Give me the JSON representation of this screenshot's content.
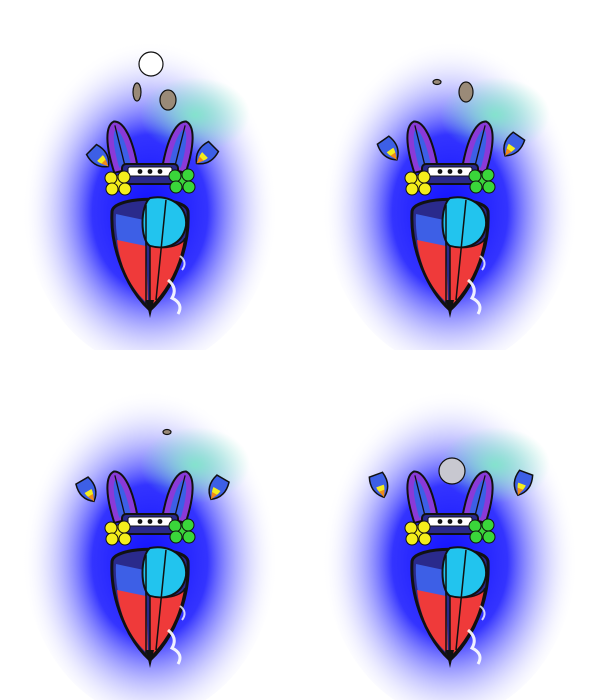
{
  "sprite_sheet": {
    "frame_count": 4,
    "frames": [
      {
        "index": 1,
        "debris": [
          "white-disc",
          "grey-oval",
          "grey-oval"
        ],
        "wings_spread": true
      },
      {
        "index": 2,
        "debris": [
          "grey-oval",
          "grey-oval"
        ],
        "wings_spread": true
      },
      {
        "index": 3,
        "debris": [
          "grey-oval"
        ],
        "wings_spread": true
      },
      {
        "index": 4,
        "debris": [
          "silver-disc"
        ],
        "wings_spread": true
      }
    ]
  },
  "palette": {
    "glow_blue": "#1010ff",
    "glow_mint": "#7fe8c8",
    "body_navy": "#2a2a8c",
    "cyan": "#22c4ee",
    "red": "#ef3a3a",
    "purple": "#8a3ad8",
    "blue": "#3d5fe6",
    "yellow_puff": "#f4ee1c",
    "green_puff": "#3ad63a",
    "outline": "#111111",
    "flame_orange": "#f08a1a",
    "debris_grey": "#9a8a78",
    "disc_white": "#ffffff"
  }
}
